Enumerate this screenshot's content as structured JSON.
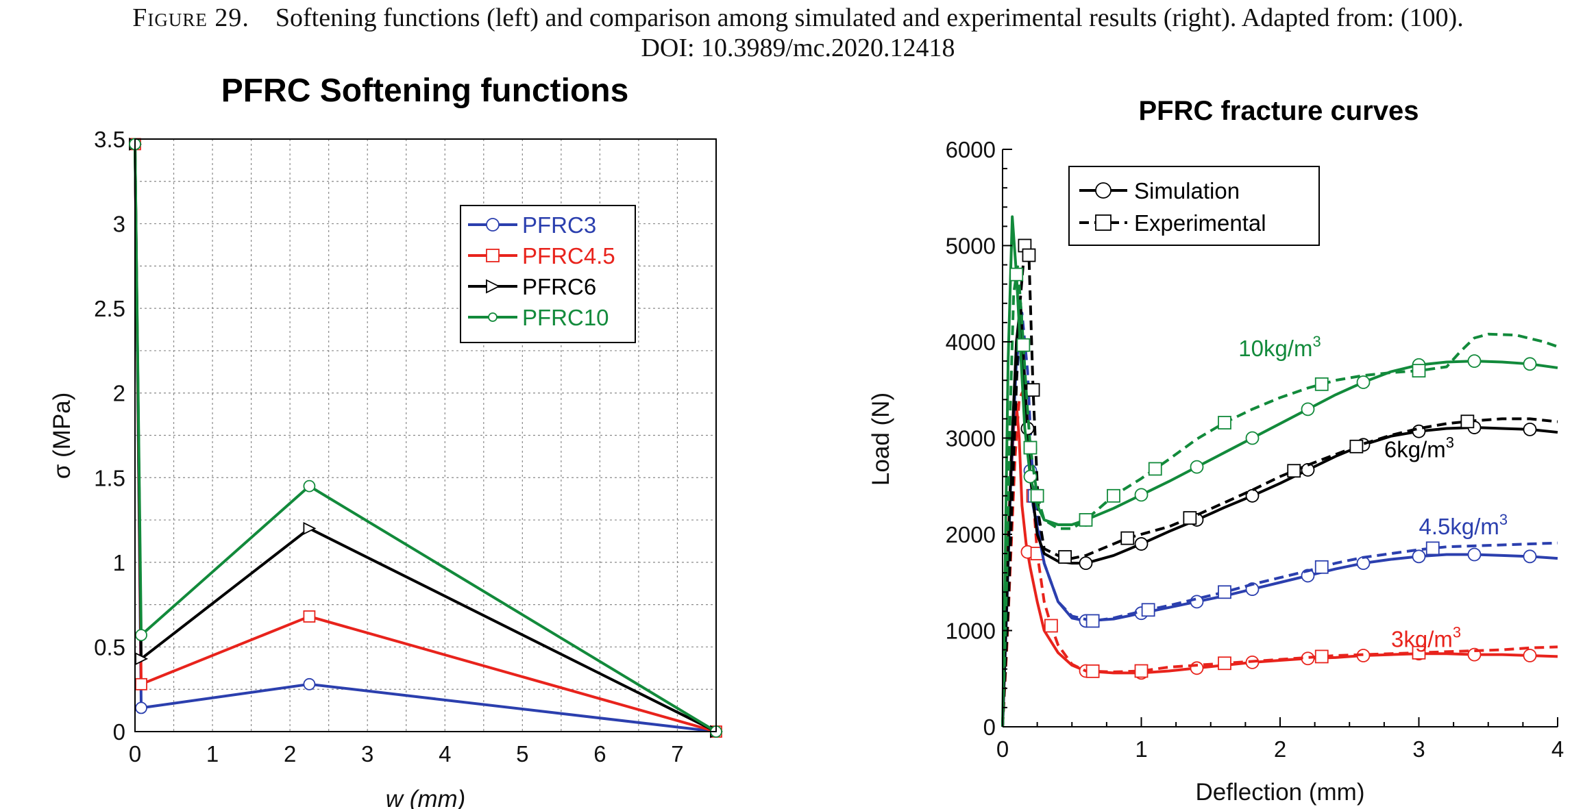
{
  "caption": {
    "label": "Figure 29.",
    "text": "Softening functions (left) and comparison among simulated and experimental results (right). Adapted from: (100).",
    "doi": "DOI: 10.3989/mc.2020.12418"
  },
  "chart_data": [
    {
      "type": "line",
      "title": "PFRC Softening functions",
      "xlabel": "w (mm)",
      "ylabel": "σ (MPa)",
      "xlim": [
        0,
        7.5
      ],
      "ylim": [
        0,
        3.5
      ],
      "xticks": [
        "0",
        "1",
        "2",
        "3",
        "4",
        "5",
        "6",
        "7"
      ],
      "yticks": [
        "0",
        "0.5",
        "1",
        "1.5",
        "2",
        "2.5",
        "3",
        "3.5"
      ],
      "grid": true,
      "legend_position": "top-right",
      "series": [
        {
          "name": "PFRC3",
          "color": "#2b3fae",
          "marker": "circle",
          "x": [
            0,
            0.08,
            2.25,
            7.5
          ],
          "y": [
            3.47,
            0.14,
            0.28,
            0
          ]
        },
        {
          "name": "PFRC4.5",
          "color": "#e8231c",
          "marker": "square",
          "x": [
            0,
            0.08,
            2.25,
            7.5
          ],
          "y": [
            3.47,
            0.28,
            0.68,
            0
          ]
        },
        {
          "name": "PFRC6",
          "color": "#000000",
          "marker": "triangle-right",
          "x": [
            0,
            0.08,
            2.25,
            7.5
          ],
          "y": [
            3.47,
            0.43,
            1.2,
            0
          ]
        },
        {
          "name": "PFRC10",
          "color": "#128a3b",
          "marker": "circle",
          "x": [
            0,
            0.08,
            2.25,
            7.5
          ],
          "y": [
            3.47,
            0.57,
            1.45,
            0
          ]
        }
      ]
    },
    {
      "type": "line",
      "title": "PFRC fracture curves",
      "xlabel": "Deflection (mm)",
      "ylabel": "Load (N)",
      "xlim": [
        0,
        4
      ],
      "ylim": [
        0,
        6000
      ],
      "xticks": [
        "0",
        "1",
        "2",
        "3",
        "4"
      ],
      "yticks": [
        "0",
        "1000",
        "2000",
        "3000",
        "4000",
        "5000",
        "6000"
      ],
      "grid": false,
      "legend_position": "top-left",
      "legend": [
        {
          "name": "Simulation",
          "marker": "circle",
          "style": "solid"
        },
        {
          "name": "Experimental",
          "marker": "square",
          "style": "dashed"
        }
      ],
      "annotations": [
        {
          "text": "10kg/m",
          "sup": "3",
          "color": "#128a3b",
          "x": 1.7,
          "y": 3850
        },
        {
          "text": "6kg/m",
          "sup": "3",
          "color": "#000000",
          "x": 2.75,
          "y": 2800
        },
        {
          "text": "4.5kg/m",
          "sup": "3",
          "color": "#2b3fae",
          "x": 3.0,
          "y": 2000
        },
        {
          "text": "3kg/m",
          "sup": "3",
          "color": "#e8231c",
          "x": 2.8,
          "y": 830
        }
      ],
      "series": [
        {
          "group": "3kg/m3",
          "kind": "Simulation",
          "color": "#e8231c",
          "style": "solid",
          "x": [
            0,
            0.02,
            0.05,
            0.08,
            0.1,
            0.12,
            0.14,
            0.17,
            0.2,
            0.25,
            0.3,
            0.4,
            0.5,
            0.6,
            0.8,
            1,
            1.2,
            1.4,
            1.6,
            1.8,
            2,
            2.2,
            2.4,
            2.6,
            2.8,
            3,
            3.2,
            3.4,
            3.6,
            3.8,
            4
          ],
          "y": [
            0,
            1100,
            2300,
            3100,
            3350,
            3000,
            2300,
            1900,
            1650,
            1300,
            1000,
            770,
            640,
            580,
            560,
            560,
            580,
            610,
            640,
            670,
            690,
            710,
            720,
            740,
            750,
            760,
            760,
            750,
            750,
            740,
            730
          ],
          "mx": [
            0.18,
            0.6,
            1.0,
            1.4,
            1.8,
            2.2,
            2.6,
            3.0,
            3.4,
            3.8
          ]
        },
        {
          "group": "3kg/m3",
          "kind": "Experimental",
          "color": "#e8231c",
          "style": "dashed",
          "x": [
            0,
            0.03,
            0.06,
            0.09,
            0.12,
            0.15,
            0.18,
            0.22,
            0.25,
            0.3,
            0.35,
            0.4,
            0.5,
            0.6,
            0.8,
            1,
            1.2,
            1.4,
            1.6,
            1.8,
            2,
            2.2,
            2.4,
            2.6,
            2.8,
            3,
            3.2,
            3.4,
            3.6,
            3.8,
            4
          ],
          "y": [
            0,
            800,
            1800,
            2800,
            3400,
            3500,
            3200,
            2400,
            1800,
            1300,
            1050,
            850,
            650,
            580,
            570,
            580,
            620,
            640,
            660,
            680,
            700,
            720,
            740,
            750,
            760,
            770,
            780,
            790,
            800,
            820,
            830
          ],
          "mx": [
            0.22,
            0.25,
            0.35,
            0.65,
            1.0,
            1.6,
            2.3,
            3.0
          ]
        },
        {
          "group": "4.5kg/m3",
          "kind": "Simulation",
          "color": "#2b3fae",
          "style": "solid",
          "x": [
            0,
            0.03,
            0.06,
            0.1,
            0.13,
            0.17,
            0.22,
            0.3,
            0.4,
            0.5,
            0.6,
            0.8,
            1,
            1.2,
            1.4,
            1.6,
            1.8,
            2,
            2.2,
            2.4,
            2.6,
            2.8,
            3,
            3.2,
            3.4,
            3.6,
            3.8,
            4
          ],
          "y": [
            0,
            1200,
            2600,
            3800,
            4100,
            3200,
            2300,
            1700,
            1300,
            1130,
            1100,
            1120,
            1180,
            1240,
            1300,
            1360,
            1430,
            1500,
            1570,
            1640,
            1700,
            1740,
            1770,
            1790,
            1790,
            1780,
            1770,
            1750
          ],
          "mx": [
            0.2,
            0.6,
            1.0,
            1.4,
            1.8,
            2.2,
            2.6,
            3.0,
            3.4,
            3.8
          ]
        },
        {
          "group": "4.5kg/m3",
          "kind": "Experimental",
          "color": "#2b3fae",
          "style": "dashed",
          "x": [
            0,
            0.03,
            0.06,
            0.1,
            0.14,
            0.18,
            0.22,
            0.3,
            0.4,
            0.5,
            0.65,
            0.8,
            1,
            1.2,
            1.4,
            1.6,
            1.8,
            2,
            2.2,
            2.4,
            2.6,
            2.8,
            3,
            3.2,
            3.4,
            3.6,
            3.8,
            4
          ],
          "y": [
            0,
            1000,
            2300,
            3600,
            4300,
            3700,
            2500,
            1700,
            1300,
            1150,
            1100,
            1130,
            1200,
            1260,
            1330,
            1400,
            1480,
            1550,
            1620,
            1700,
            1760,
            1800,
            1840,
            1870,
            1880,
            1890,
            1900,
            1910
          ],
          "mx": [
            0.23,
            0.65,
            1.05,
            1.6,
            2.3,
            3.1
          ]
        },
        {
          "group": "6kg/m3",
          "kind": "Simulation",
          "color": "#000000",
          "style": "solid",
          "x": [
            0,
            0.03,
            0.06,
            0.1,
            0.13,
            0.16,
            0.2,
            0.25,
            0.3,
            0.4,
            0.5,
            0.6,
            0.8,
            1,
            1.2,
            1.4,
            1.6,
            1.8,
            2,
            2.2,
            2.4,
            2.6,
            2.8,
            3,
            3.2,
            3.4,
            3.6,
            3.8,
            4
          ],
          "y": [
            0,
            1300,
            2700,
            4000,
            4400,
            3600,
            2600,
            2000,
            1800,
            1720,
            1700,
            1700,
            1780,
            1900,
            2030,
            2150,
            2280,
            2400,
            2530,
            2670,
            2810,
            2930,
            3020,
            3070,
            3100,
            3110,
            3100,
            3090,
            3060
          ],
          "mx": [
            0.18,
            0.6,
            1.0,
            1.4,
            1.8,
            2.2,
            2.6,
            3.0,
            3.4,
            3.8
          ]
        },
        {
          "group": "6kg/m3",
          "kind": "Experimental",
          "color": "#000000",
          "style": "dashed",
          "x": [
            0,
            0.04,
            0.08,
            0.12,
            0.16,
            0.19,
            0.22,
            0.26,
            0.3,
            0.4,
            0.5,
            0.6,
            0.8,
            0.9,
            1.2,
            1.4,
            1.6,
            1.8,
            2,
            2.2,
            2.4,
            2.6,
            2.8,
            3,
            3.2,
            3.4,
            3.6,
            3.8,
            4
          ],
          "y": [
            0,
            1200,
            2800,
            4300,
            5000,
            4900,
            3500,
            2200,
            1850,
            1780,
            1750,
            1780,
            1900,
            1960,
            2080,
            2200,
            2330,
            2460,
            2600,
            2720,
            2830,
            2940,
            3030,
            3100,
            3150,
            3180,
            3200,
            3200,
            3170
          ],
          "mx": [
            0.16,
            0.19,
            0.22,
            0.45,
            0.9,
            1.35,
            2.1,
            2.55,
            3.35
          ]
        },
        {
          "group": "10kg/m3",
          "kind": "Simulation",
          "color": "#128a3b",
          "style": "solid",
          "x": [
            0,
            0.02,
            0.04,
            0.07,
            0.1,
            0.13,
            0.16,
            0.2,
            0.25,
            0.3,
            0.4,
            0.5,
            0.6,
            0.8,
            1,
            1.2,
            1.4,
            1.6,
            1.8,
            2,
            2.2,
            2.4,
            2.6,
            2.8,
            3,
            3.2,
            3.4,
            3.6,
            3.8,
            4
          ],
          "y": [
            0,
            1800,
            3800,
            5300,
            4700,
            3900,
            3100,
            2600,
            2300,
            2150,
            2100,
            2100,
            2150,
            2270,
            2410,
            2550,
            2700,
            2850,
            3000,
            3150,
            3300,
            3450,
            3580,
            3690,
            3760,
            3790,
            3800,
            3790,
            3770,
            3730
          ],
          "mx": [
            0.2,
            0.6,
            1.0,
            1.4,
            1.8,
            2.2,
            2.6,
            3.0,
            3.4,
            3.8
          ]
        },
        {
          "group": "10kg/m3",
          "kind": "Experimental",
          "color": "#128a3b",
          "style": "dashed",
          "x": [
            0,
            0.03,
            0.05,
            0.08,
            0.11,
            0.14,
            0.17,
            0.2,
            0.25,
            0.3,
            0.4,
            0.5,
            0.6,
            0.8,
            1,
            1.2,
            1.4,
            1.6,
            1.8,
            2,
            2.2,
            2.4,
            2.6,
            2.8,
            3,
            3.2,
            3.3,
            3.4,
            3.5,
            3.7,
            3.9,
            4
          ],
          "y": [
            0,
            1500,
            3000,
            4500,
            4800,
            4200,
            3500,
            2900,
            2400,
            2150,
            2060,
            2060,
            2150,
            2400,
            2580,
            2780,
            2990,
            3160,
            3300,
            3420,
            3520,
            3600,
            3650,
            3680,
            3700,
            3740,
            3900,
            4040,
            4080,
            4070,
            4000,
            3950
          ],
          "mx": [
            0.1,
            0.15,
            0.2,
            0.25,
            0.6,
            0.8,
            1.1,
            1.6,
            2.3,
            3.0
          ]
        }
      ]
    }
  ]
}
